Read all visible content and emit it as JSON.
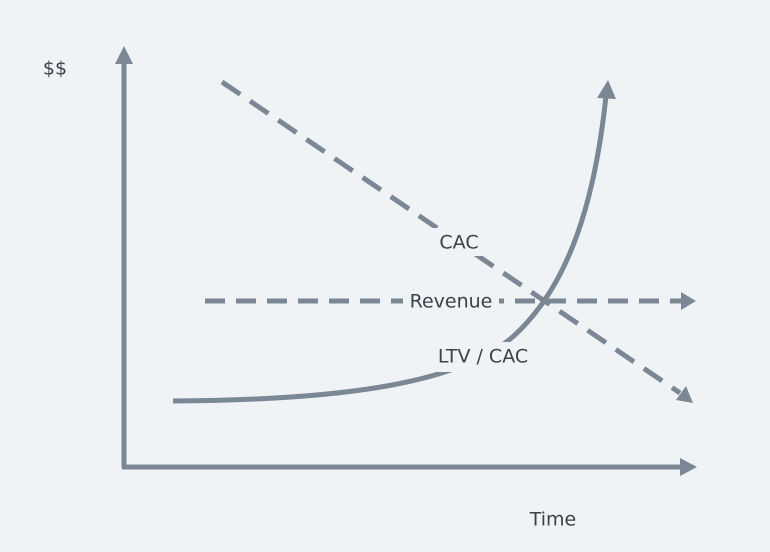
{
  "axes": {
    "y_label": "$$",
    "x_label": "Time"
  },
  "lines": [
    {
      "label": "CAC"
    },
    {
      "label": "Revenue"
    },
    {
      "label": "LTV / CAC"
    }
  ]
}
